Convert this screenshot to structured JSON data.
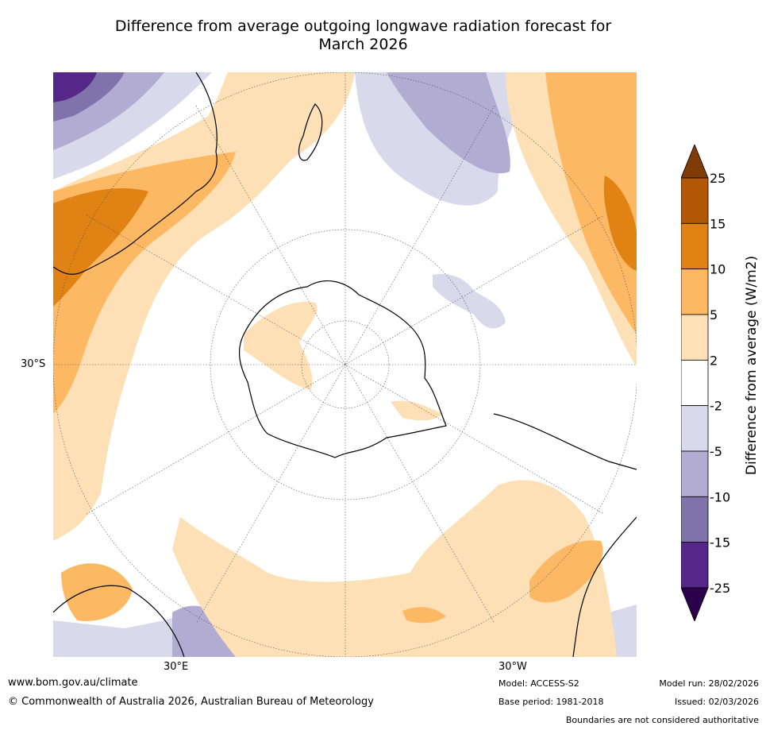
{
  "title": {
    "line1": "Difference from average outgoing longwave radiation forecast for",
    "line2": "March 2026"
  },
  "axis_labels": {
    "lat_left": "30°S",
    "lon_bottom_left": "30°E",
    "lon_bottom_right": "30°W"
  },
  "colorbar": {
    "label": "Difference from average (W/m2)",
    "levels": [
      "25",
      "15",
      "10",
      "5",
      "2",
      "-2",
      "-5",
      "-10",
      "-15",
      "-25"
    ],
    "colors": [
      "#7f3b08",
      "#b35806",
      "#e08214",
      "#fdb863",
      "#fee0b6",
      "#ffffff",
      "#d8daeb",
      "#b2abd2",
      "#8073ac",
      "#542788",
      "#2d004b"
    ]
  },
  "footer": {
    "url": "www.bom.gov.au/climate",
    "copyright": "© Commonwealth of Australia 2026, Australian Bureau of Meteorology",
    "model": "Model: ACCESS-S2",
    "base_period": "Base period: 1981-2018",
    "model_run": "Model run: 28/02/2026",
    "issued": "Issued: 02/03/2026",
    "disclaimer": "Boundaries are not considered authoritative"
  }
}
